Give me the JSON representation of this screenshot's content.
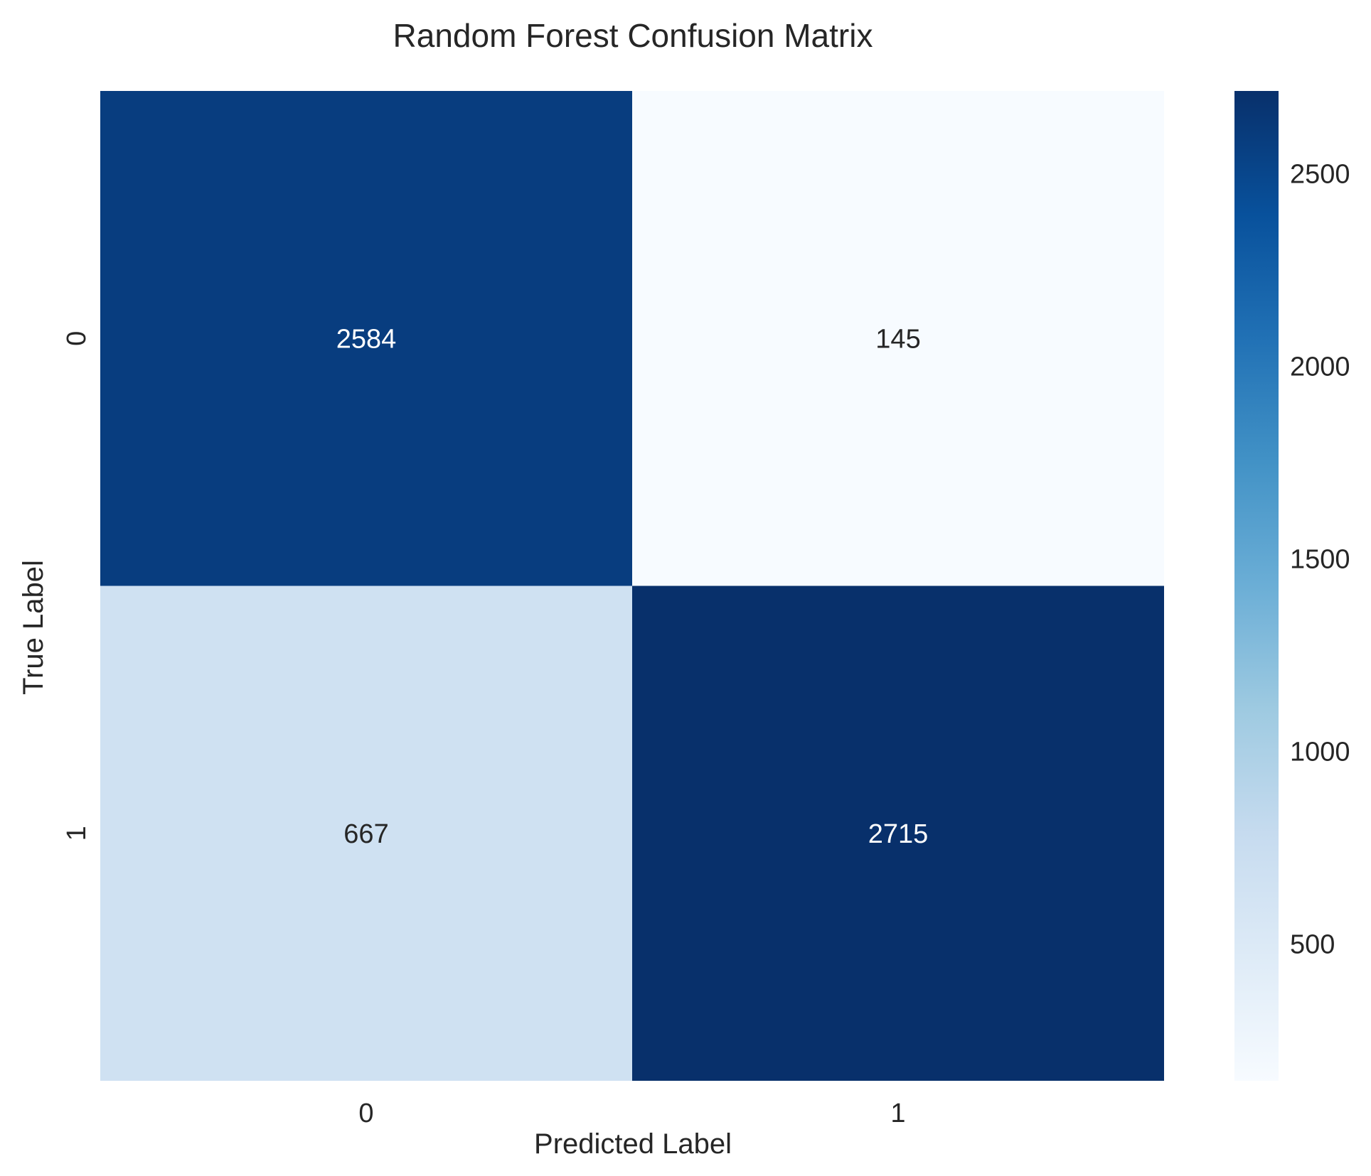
{
  "chart_data": {
    "type": "heatmap",
    "title": "Random Forest Confusion Matrix",
    "xlabel": "Predicted Label",
    "ylabel": "True Label",
    "x_categories": [
      "0",
      "1"
    ],
    "y_categories": [
      "0",
      "1"
    ],
    "values": [
      [
        2584,
        145
      ],
      [
        667,
        2715
      ]
    ],
    "colormap": "Blues",
    "colorbar": {
      "range": [
        145,
        2715
      ],
      "ticks": [
        500,
        1000,
        1500,
        2000,
        2500
      ],
      "tick_labels": [
        "500",
        "1000",
        "1500",
        "2000",
        "2500"
      ]
    },
    "colors": {
      "light_text": "#ffffff",
      "dark_text": "#262626",
      "blues_stops": [
        "#f7fbff",
        "#deebf7",
        "#c6dbef",
        "#9ecae1",
        "#6baed6",
        "#4292c6",
        "#2171b5",
        "#08519c",
        "#08306b"
      ]
    }
  }
}
